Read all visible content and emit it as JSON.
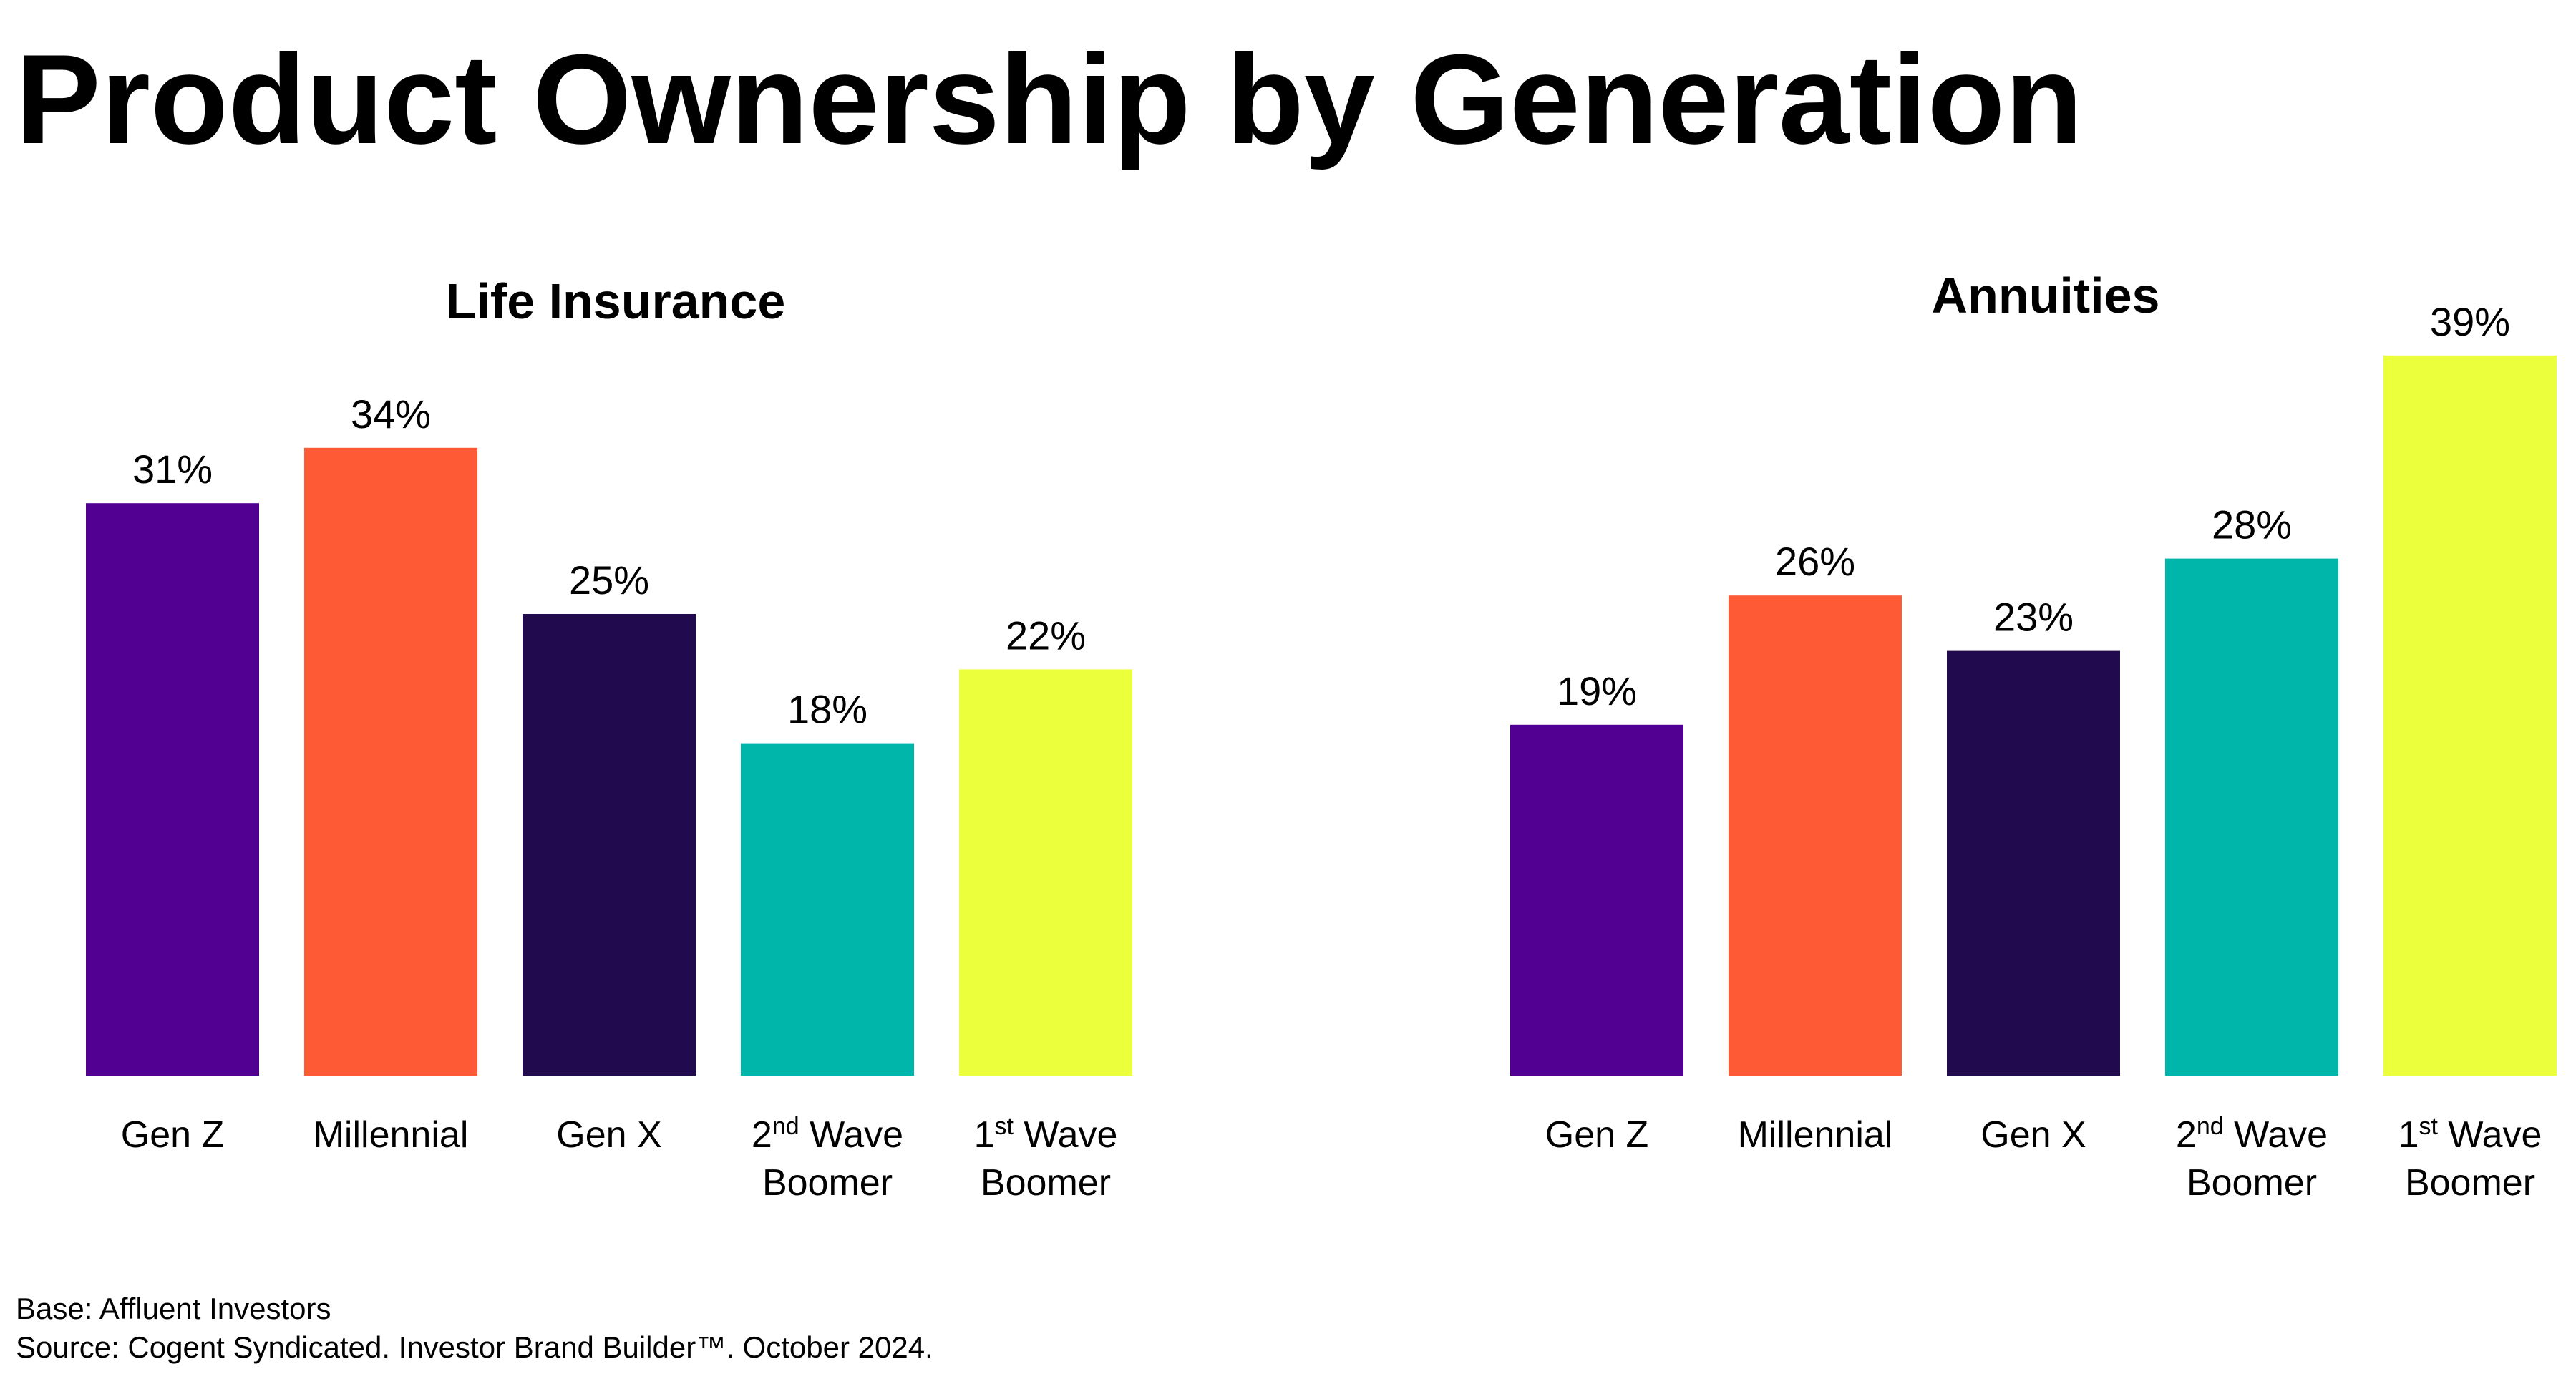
{
  "title": "Product Ownership by Generation",
  "footer": {
    "base": "Base: Affluent Investors",
    "source": "Source: Cogent Syndicated. Investor Brand Builder™. October 2024."
  },
  "colors": {
    "Gen Z": "#520092",
    "Millennial": "#FF5A36",
    "Gen X": "#220A4F",
    "2nd Wave Boomer": "#00B5AA",
    "1st Wave Boomer": "#EBFF3C"
  },
  "chart_data": [
    {
      "type": "bar",
      "title": "Life Insurance",
      "categories": [
        "Gen Z",
        "Millennial",
        "Gen X",
        "2nd Wave Boomer",
        "1st Wave Boomer"
      ],
      "values": [
        31,
        34,
        25,
        18,
        22
      ],
      "value_labels": [
        "31%",
        "34%",
        "25%",
        "18%",
        "22%"
      ],
      "unit": "%",
      "ylim": [
        0,
        40
      ],
      "grid": false,
      "legend": "none"
    },
    {
      "type": "bar",
      "title": "Annuities",
      "categories": [
        "Gen Z",
        "Millennial",
        "Gen X",
        "2nd Wave Boomer",
        "1st Wave Boomer"
      ],
      "values": [
        19,
        26,
        23,
        28,
        39
      ],
      "value_labels": [
        "19%",
        "26%",
        "23%",
        "28%",
        "39%"
      ],
      "unit": "%",
      "ylim": [
        0,
        40
      ],
      "grid": false,
      "legend": "none"
    }
  ]
}
